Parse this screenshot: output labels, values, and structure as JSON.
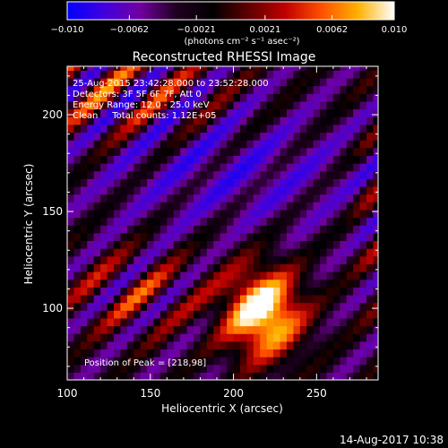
{
  "chart_data": {
    "type": "heatmap",
    "title": "Reconstructed RHESSI Image",
    "xlabel": "Heliocentric X (arcsec)",
    "ylabel": "Heliocentric Y (arcsec)",
    "xlim": [
      100,
      287
    ],
    "ylim": [
      63,
      225
    ],
    "x_ticks": [
      100,
      150,
      200,
      250
    ],
    "y_ticks": [
      100,
      150,
      200
    ],
    "colorbar": {
      "range": [
        -0.01,
        0.01
      ],
      "ticks": [
        "-0.010",
        "-0.0062",
        "-0.0021",
        "0.0021",
        "0.0062",
        "0.010"
      ],
      "units_label": "(photons cm⁻² s⁻¹ asec⁻²)",
      "colormap": [
        "#0000ff",
        "#4000e0",
        "#7000a0",
        "#200020",
        "#000000",
        "#600000",
        "#c00000",
        "#ff5000",
        "#ffb000",
        "#ffffff"
      ]
    },
    "annotations": [
      "25-Aug-2015 23:42:28.000 to 23:52:28.000",
      "Detectors: 3F 5F 6F 7F, Att 0",
      "Energy Range: 12.0 - 25.0 keV",
      "Clean     Total counts: 1.12E+05"
    ],
    "peak_label": "Position of Peak = [218,98]",
    "peak": [
      218,
      98
    ],
    "timestamp": "14-Aug-2017 10:38"
  }
}
